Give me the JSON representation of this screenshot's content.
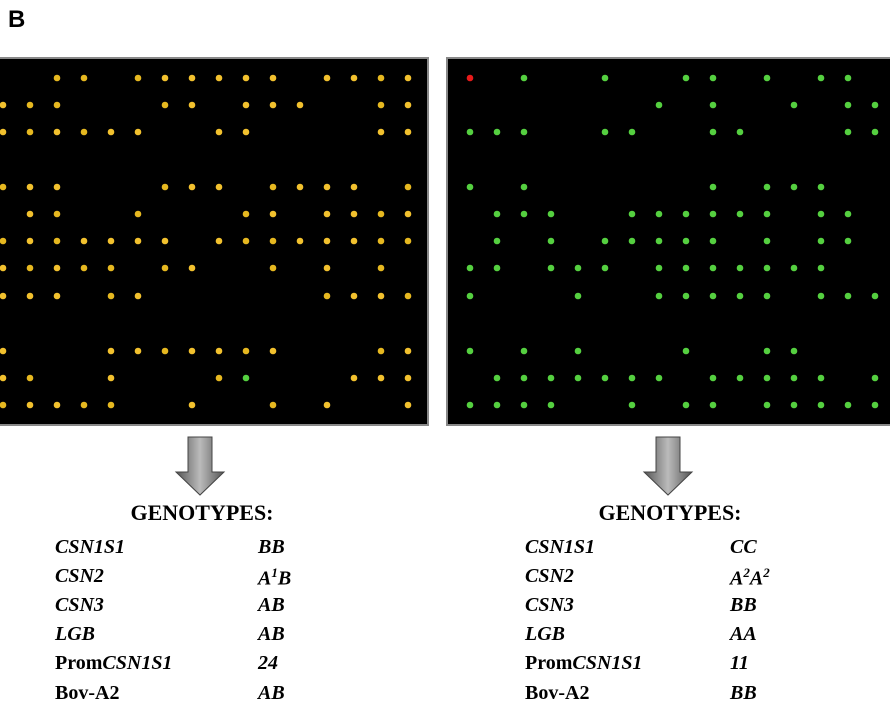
{
  "panel_label": "B",
  "panels": [
    {
      "heading": "GENOTYPES:",
      "rows": [
        {
          "locus": [
            {
              "text": "CSN1S1",
              "italic": true
            }
          ],
          "genotype": [
            {
              "text": "BB",
              "italic": true
            }
          ]
        },
        {
          "locus": [
            {
              "text": "CSN2",
              "italic": true
            }
          ],
          "genotype": [
            {
              "text": "A",
              "italic": true
            },
            {
              "text": "1",
              "italic": true,
              "sup": true
            },
            {
              "text": "B",
              "italic": true
            }
          ]
        },
        {
          "locus": [
            {
              "text": "CSN3",
              "italic": true
            }
          ],
          "genotype": [
            {
              "text": "AB",
              "italic": true
            }
          ]
        },
        {
          "locus": [
            {
              "text": "LGB",
              "italic": true
            }
          ],
          "genotype": [
            {
              "text": "AB",
              "italic": true
            }
          ]
        },
        {
          "locus": [
            {
              "text": "Prom"
            },
            {
              "text": "CSN1S1",
              "italic": true
            }
          ],
          "genotype": [
            {
              "text": "24",
              "italic": true
            }
          ]
        },
        {
          "locus": [
            {
              "text": "Bov-A2"
            }
          ],
          "genotype": [
            {
              "text": "AB",
              "italic": true
            }
          ]
        }
      ]
    },
    {
      "heading": "GENOTYPES:",
      "rows": [
        {
          "locus": [
            {
              "text": "CSN1S1",
              "italic": true
            }
          ],
          "genotype": [
            {
              "text": "CC",
              "italic": true
            }
          ]
        },
        {
          "locus": [
            {
              "text": "CSN2",
              "italic": true
            }
          ],
          "genotype": [
            {
              "text": "A",
              "italic": true
            },
            {
              "text": "2",
              "italic": true,
              "sup": true
            },
            {
              "text": "A",
              "italic": true
            },
            {
              "text": "2",
              "italic": true,
              "sup": true
            }
          ]
        },
        {
          "locus": [
            {
              "text": "CSN3",
              "italic": true
            }
          ],
          "genotype": [
            {
              "text": "BB",
              "italic": true
            }
          ]
        },
        {
          "locus": [
            {
              "text": "LGB",
              "italic": true
            }
          ],
          "genotype": [
            {
              "text": "AA",
              "italic": true
            }
          ]
        },
        {
          "locus": [
            {
              "text": "Prom"
            },
            {
              "text": "CSN1S1",
              "italic": true
            }
          ],
          "genotype": [
            {
              "text": "11",
              "italic": true
            }
          ]
        },
        {
          "locus": [
            {
              "text": "Bov-A2"
            }
          ],
          "genotype": [
            {
              "text": "BB",
              "italic": true
            }
          ]
        }
      ]
    }
  ]
}
